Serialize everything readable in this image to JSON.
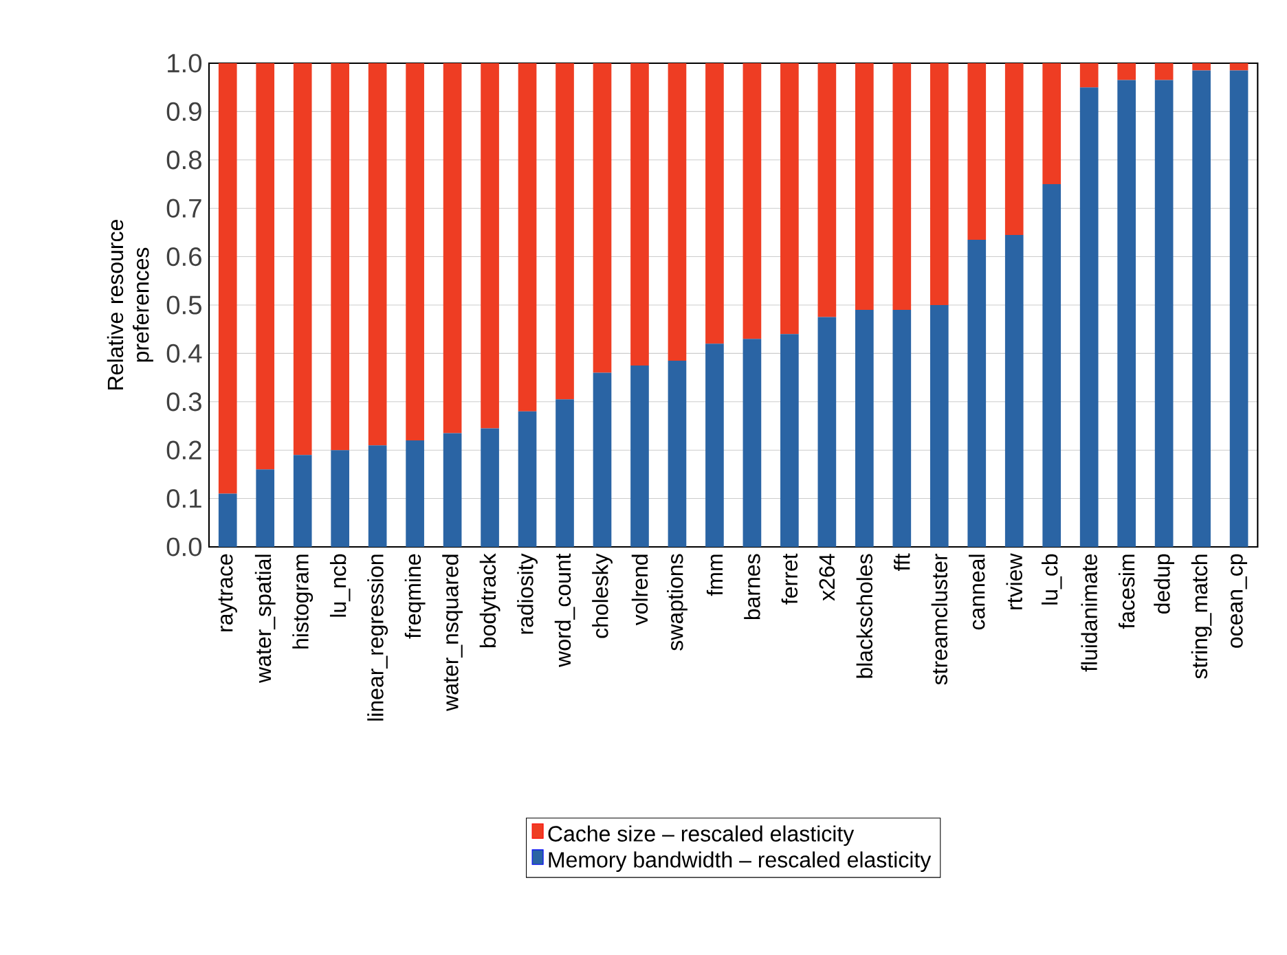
{
  "chart_data": {
    "type": "bar",
    "stacked": true,
    "ylabel": "Relative resource preferences",
    "categories": [
      "raytrace",
      "water_spatial",
      "histogram",
      "lu_ncb",
      "linear_regression",
      "freqmine",
      "water_nsquared",
      "bodytrack",
      "radiosity",
      "word_count",
      "cholesky",
      "volrend",
      "swaptions",
      "fmm",
      "barnes",
      "ferret",
      "x264",
      "blackscholes",
      "fft",
      "streamcluster",
      "canneal",
      "rtview",
      "lu_cb",
      "fluidanimate",
      "facesim",
      "dedup",
      "string_match",
      "ocean_cp"
    ],
    "series": [
      {
        "name": "Memory bandwidth – rescaled elasticity",
        "color": "#2a64a4",
        "values": [
          0.11,
          0.16,
          0.19,
          0.2,
          0.21,
          0.22,
          0.235,
          0.245,
          0.28,
          0.305,
          0.36,
          0.375,
          0.385,
          0.42,
          0.43,
          0.44,
          0.475,
          0.49,
          0.49,
          0.5,
          0.635,
          0.645,
          0.75,
          0.95,
          0.965,
          0.965,
          0.985,
          0.985
        ]
      },
      {
        "name": "Cache size – rescaled elasticity",
        "color": "#ee3d23",
        "values": [
          0.89,
          0.84,
          0.81,
          0.8,
          0.79,
          0.78,
          0.765,
          0.755,
          0.72,
          0.695,
          0.64,
          0.625,
          0.615,
          0.58,
          0.57,
          0.56,
          0.525,
          0.51,
          0.51,
          0.5,
          0.365,
          0.355,
          0.25,
          0.05,
          0.035,
          0.035,
          0.015,
          0.015
        ]
      }
    ],
    "ylim": [
      0,
      1
    ],
    "yticks": [
      {
        "value": 0,
        "label": "0.0"
      },
      0.1,
      0.2,
      0.3,
      0.4,
      0.5,
      0.6,
      0.7,
      0.8,
      0.9,
      {
        "value": 1,
        "label": "1.0"
      }
    ],
    "grid": "y",
    "legend": "bottom"
  }
}
